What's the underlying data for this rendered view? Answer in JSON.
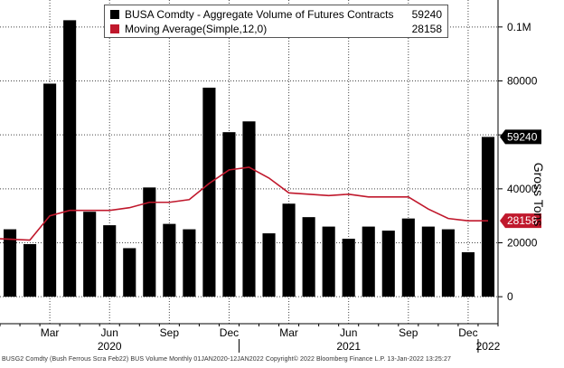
{
  "chart_data": {
    "type": "bar",
    "title": "BUSA Comdty - Aggregate Volume of Futures Contracts",
    "x": [
      "Jan 2020",
      "Feb 2020",
      "Mar 2020",
      "Apr 2020",
      "May 2020",
      "Jun 2020",
      "Jul 2020",
      "Aug 2020",
      "Sep 2020",
      "Oct 2020",
      "Nov 2020",
      "Dec 2020",
      "Jan 2021",
      "Feb 2021",
      "Mar 2021",
      "Apr 2021",
      "May 2021",
      "Jun 2021",
      "Jul 2021",
      "Aug 2021",
      "Sep 2021",
      "Oct 2021",
      "Nov 2021",
      "Dec 2021",
      "Jan 2022"
    ],
    "x_tick_labels": [
      {
        "index": 2,
        "label": "Mar"
      },
      {
        "index": 5,
        "label": "Jun"
      },
      {
        "index": 8,
        "label": "Sep"
      },
      {
        "index": 11,
        "label": "Dec"
      },
      {
        "index": 14,
        "label": "Mar"
      },
      {
        "index": 17,
        "label": "Jun"
      },
      {
        "index": 20,
        "label": "Sep"
      },
      {
        "index": 23,
        "label": "Dec"
      }
    ],
    "year_labels": [
      {
        "index": 5,
        "label": "2020"
      },
      {
        "index": 17,
        "label": "2021"
      },
      {
        "index": 24,
        "label": "2022"
      }
    ],
    "series": [
      {
        "name": "BUSA Comdty - Aggregate Volume of Futures Contracts",
        "kind": "bar",
        "color": "#000000",
        "last_value_label": "59240",
        "values": [
          25000,
          19500,
          79000,
          102500,
          31500,
          26500,
          18000,
          40500,
          27000,
          25000,
          77500,
          61000,
          65000,
          23500,
          34500,
          29500,
          26000,
          21500,
          26000,
          24500,
          29000,
          26000,
          25000,
          16500,
          59240
        ]
      },
      {
        "name": "Moving Average(Simple,12,0)",
        "kind": "line",
        "color": "#c0182c",
        "last_value_label": "28158",
        "values": [
          21500,
          21000,
          30000,
          32000,
          32000,
          32000,
          33000,
          35000,
          35000,
          36000,
          42000,
          47000,
          48000,
          44000,
          38500,
          38000,
          37500,
          38000,
          37000,
          37000,
          37000,
          32500,
          29000,
          28158,
          28158
        ]
      }
    ],
    "y_ticks": [
      {
        "value": 0,
        "label": "0"
      },
      {
        "value": 20000,
        "label": "20000"
      },
      {
        "value": 40000,
        "label": "40000"
      },
      {
        "value": 60000,
        "label": "60000"
      },
      {
        "value": 80000,
        "label": "80000"
      },
      {
        "value": 100000,
        "label": "0.1M"
      }
    ],
    "ylim": [
      -10000,
      110000
    ],
    "ylabel": "Gross Tons",
    "xlabel": "",
    "grid": true,
    "legend_position": "top-left"
  },
  "legend": {
    "items": [
      {
        "label": "BUSA Comdty - Aggregate Volume of Futures Contracts",
        "value": "59240"
      },
      {
        "label": "Moving Average(Simple,12,0)",
        "value": "28158"
      }
    ]
  },
  "footer": "BUSG2 Comdty (Bush Ferrous Scra Feb22) BUS Volume  Monthly 01JAN2020-12JAN2022 Copyright© 2022 Bloomberg Finance L.P.   13-Jan-2022 13:25:27"
}
